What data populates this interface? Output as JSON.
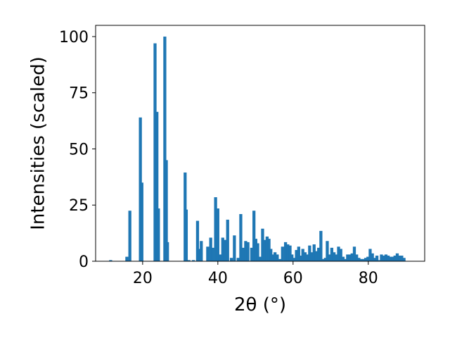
{
  "chart_data": {
    "type": "bar",
    "xlabel": "2θ (°)",
    "ylabel": "Intensities (scaled)",
    "xlim": [
      7.5,
      95
    ],
    "ylim": [
      0,
      105
    ],
    "xticks": [
      20,
      40,
      60,
      80
    ],
    "yticks": [
      0,
      25,
      50,
      75,
      100
    ],
    "grid": false,
    "legend": "none",
    "bar_color": "#1f77b4",
    "bar_width": 0.8,
    "x": [
      11.5,
      15.8,
      16.6,
      19.4,
      19.8,
      23.3,
      23.8,
      24.2,
      25.9,
      26.3,
      26.6,
      31.3,
      31.6,
      32.3,
      33.5,
      34.6,
      35.1,
      35.6,
      37.3,
      38.1,
      38.6,
      39.4,
      40.0,
      40.6,
      41.3,
      41.9,
      42.6,
      43.6,
      44.4,
      45.4,
      46.1,
      46.7,
      47.4,
      48.0,
      49.0,
      49.6,
      50.1,
      50.6,
      51.3,
      51.9,
      52.5,
      53.1,
      53.6,
      54.1,
      54.7,
      55.2,
      55.8,
      56.6,
      57.2,
      58.0,
      58.6,
      59.2,
      59.7,
      60.3,
      60.9,
      61.5,
      62.1,
      62.6,
      63.2,
      63.8,
      64.4,
      65.0,
      65.6,
      66.2,
      66.8,
      67.4,
      68.0,
      68.6,
      69.1,
      69.7,
      70.3,
      70.9,
      71.5,
      72.1,
      72.7,
      73.3,
      73.9,
      74.5,
      75.1,
      75.7,
      76.3,
      76.9,
      77.5,
      78.1,
      78.7,
      79.3,
      79.9,
      80.5,
      81.1,
      81.7,
      82.3,
      82.9,
      83.5,
      84.1,
      84.7,
      85.3,
      85.9,
      86.5,
      87.1,
      87.7,
      88.3,
      88.9,
      89.5
    ],
    "values": [
      0.5,
      2,
      22.5,
      64,
      35,
      97,
      66.5,
      23.5,
      100,
      45,
      8.5,
      39.5,
      23,
      0.5,
      0.5,
      18,
      5.5,
      9,
      6.5,
      10.5,
      6,
      28.5,
      23.5,
      3,
      10.5,
      9.5,
      18.5,
      1.5,
      11.5,
      1.5,
      21,
      6,
      9,
      8.5,
      6,
      22.5,
      10,
      8,
      2,
      14.5,
      9.5,
      11,
      10,
      5.5,
      3,
      4,
      3,
      1,
      6.5,
      8.5,
      7.5,
      7,
      3,
      1.5,
      5,
      6.5,
      2.5,
      5.5,
      4,
      3,
      7,
      4,
      7.5,
      4.5,
      6,
      13.5,
      1,
      1.5,
      9,
      3,
      6,
      4,
      3,
      6.5,
      5.5,
      2,
      1,
      3,
      3,
      3.5,
      6.5,
      3,
      1.5,
      1,
      1,
      1.5,
      2,
      5.5,
      3.5,
      1.5,
      2.5,
      0.5,
      3,
      2.5,
      3,
      2.5,
      2,
      2,
      2.5,
      3.5,
      2.5,
      2.5,
      1.5
    ]
  }
}
